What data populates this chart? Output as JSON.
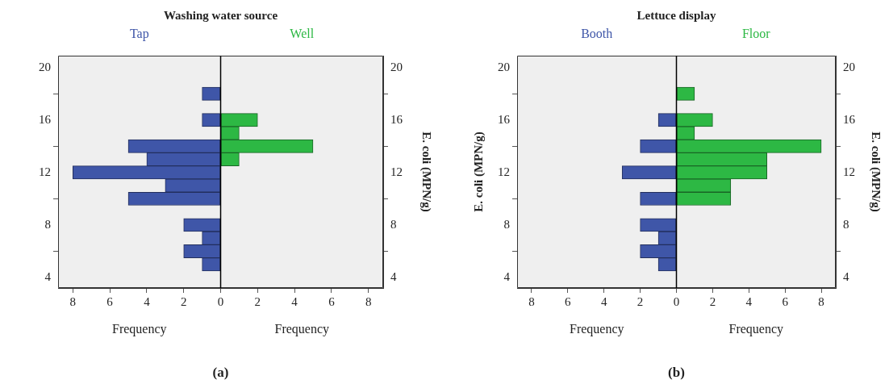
{
  "chart_data": [
    {
      "type": "histogram",
      "orientation": "horizontal",
      "title": "Washing water source",
      "xlabel": "Frequency",
      "y2label": "E. coli (MPN/g)",
      "bins": [
        4.5,
        5.5,
        6.5,
        7.5,
        8.5,
        9.5,
        10.5,
        11.5,
        12.5,
        13.5,
        14.5,
        15.5,
        16.5,
        17.5,
        18.5
      ],
      "series": [
        {
          "name": "Tap",
          "color": "#3f56a8",
          "values": [
            -1,
            -2,
            -1,
            -2,
            0,
            -5,
            -3,
            -8,
            -4,
            -5,
            0,
            -1,
            0,
            -1
          ]
        },
        {
          "name": "Well",
          "color": "#2db844",
          "values": [
            0,
            0,
            0,
            0,
            0,
            0,
            0,
            0,
            1,
            5,
            1,
            2,
            0,
            0
          ]
        }
      ],
      "xlim": [
        -8.8,
        8.8
      ],
      "xticks": [
        {
          "value": -8,
          "label": "8"
        },
        {
          "value": -6,
          "label": "6"
        },
        {
          "value": -4,
          "label": "4"
        },
        {
          "value": -2,
          "label": "2"
        },
        0,
        2,
        4,
        6,
        8
      ],
      "ylim": [
        3.2,
        20.9
      ],
      "yticks": [
        4,
        8,
        12,
        16,
        20
      ],
      "y2lim": [
        3.2,
        20.9
      ],
      "y2ticks": [
        4,
        8,
        12,
        16,
        20
      ],
      "ref_lines": [
        {
          "axis": "x",
          "value": 0,
          "color": "#000000"
        }
      ],
      "legend": false,
      "annotations": [
        "(a)"
      ]
    },
    {
      "type": "histogram",
      "orientation": "horizontal",
      "title": "Lettuce display",
      "xlabel": "Frequency",
      "ylabel": "E. coli (MPN/g)",
      "y2label": "E. coli (MPN/g)",
      "bins": [
        4.5,
        5.5,
        6.5,
        7.5,
        8.5,
        9.5,
        10.5,
        11.5,
        12.5,
        13.5,
        14.5,
        15.5,
        16.5,
        17.5,
        18.5
      ],
      "series": [
        {
          "name": "Booth",
          "color": "#3f56a8",
          "values": [
            -1,
            -2,
            -1,
            -2,
            0,
            -2,
            0,
            -3,
            0,
            -2,
            0,
            -1,
            0,
            0
          ]
        },
        {
          "name": "Floor",
          "color": "#2db844",
          "values": [
            0,
            0,
            0,
            0,
            0,
            3,
            3,
            5,
            5,
            8,
            1,
            2,
            0,
            1
          ]
        }
      ],
      "xlim": [
        -8.8,
        8.8
      ],
      "xticks": [
        {
          "value": -8,
          "label": "8"
        },
        {
          "value": -6,
          "label": "6"
        },
        {
          "value": -4,
          "label": "4"
        },
        {
          "value": -2,
          "label": "2"
        },
        0,
        2,
        4,
        6,
        8
      ],
      "ylim": [
        3.2,
        20.9
      ],
      "yticks": [
        4,
        8,
        12,
        16,
        20
      ],
      "y2lim": [
        3.2,
        20.9
      ],
      "y2ticks": [
        4,
        8,
        12,
        16,
        20
      ],
      "ref_lines": [
        {
          "axis": "x",
          "value": 0,
          "color": "#000000"
        }
      ],
      "legend": false,
      "annotations": [
        "(b)"
      ]
    }
  ]
}
